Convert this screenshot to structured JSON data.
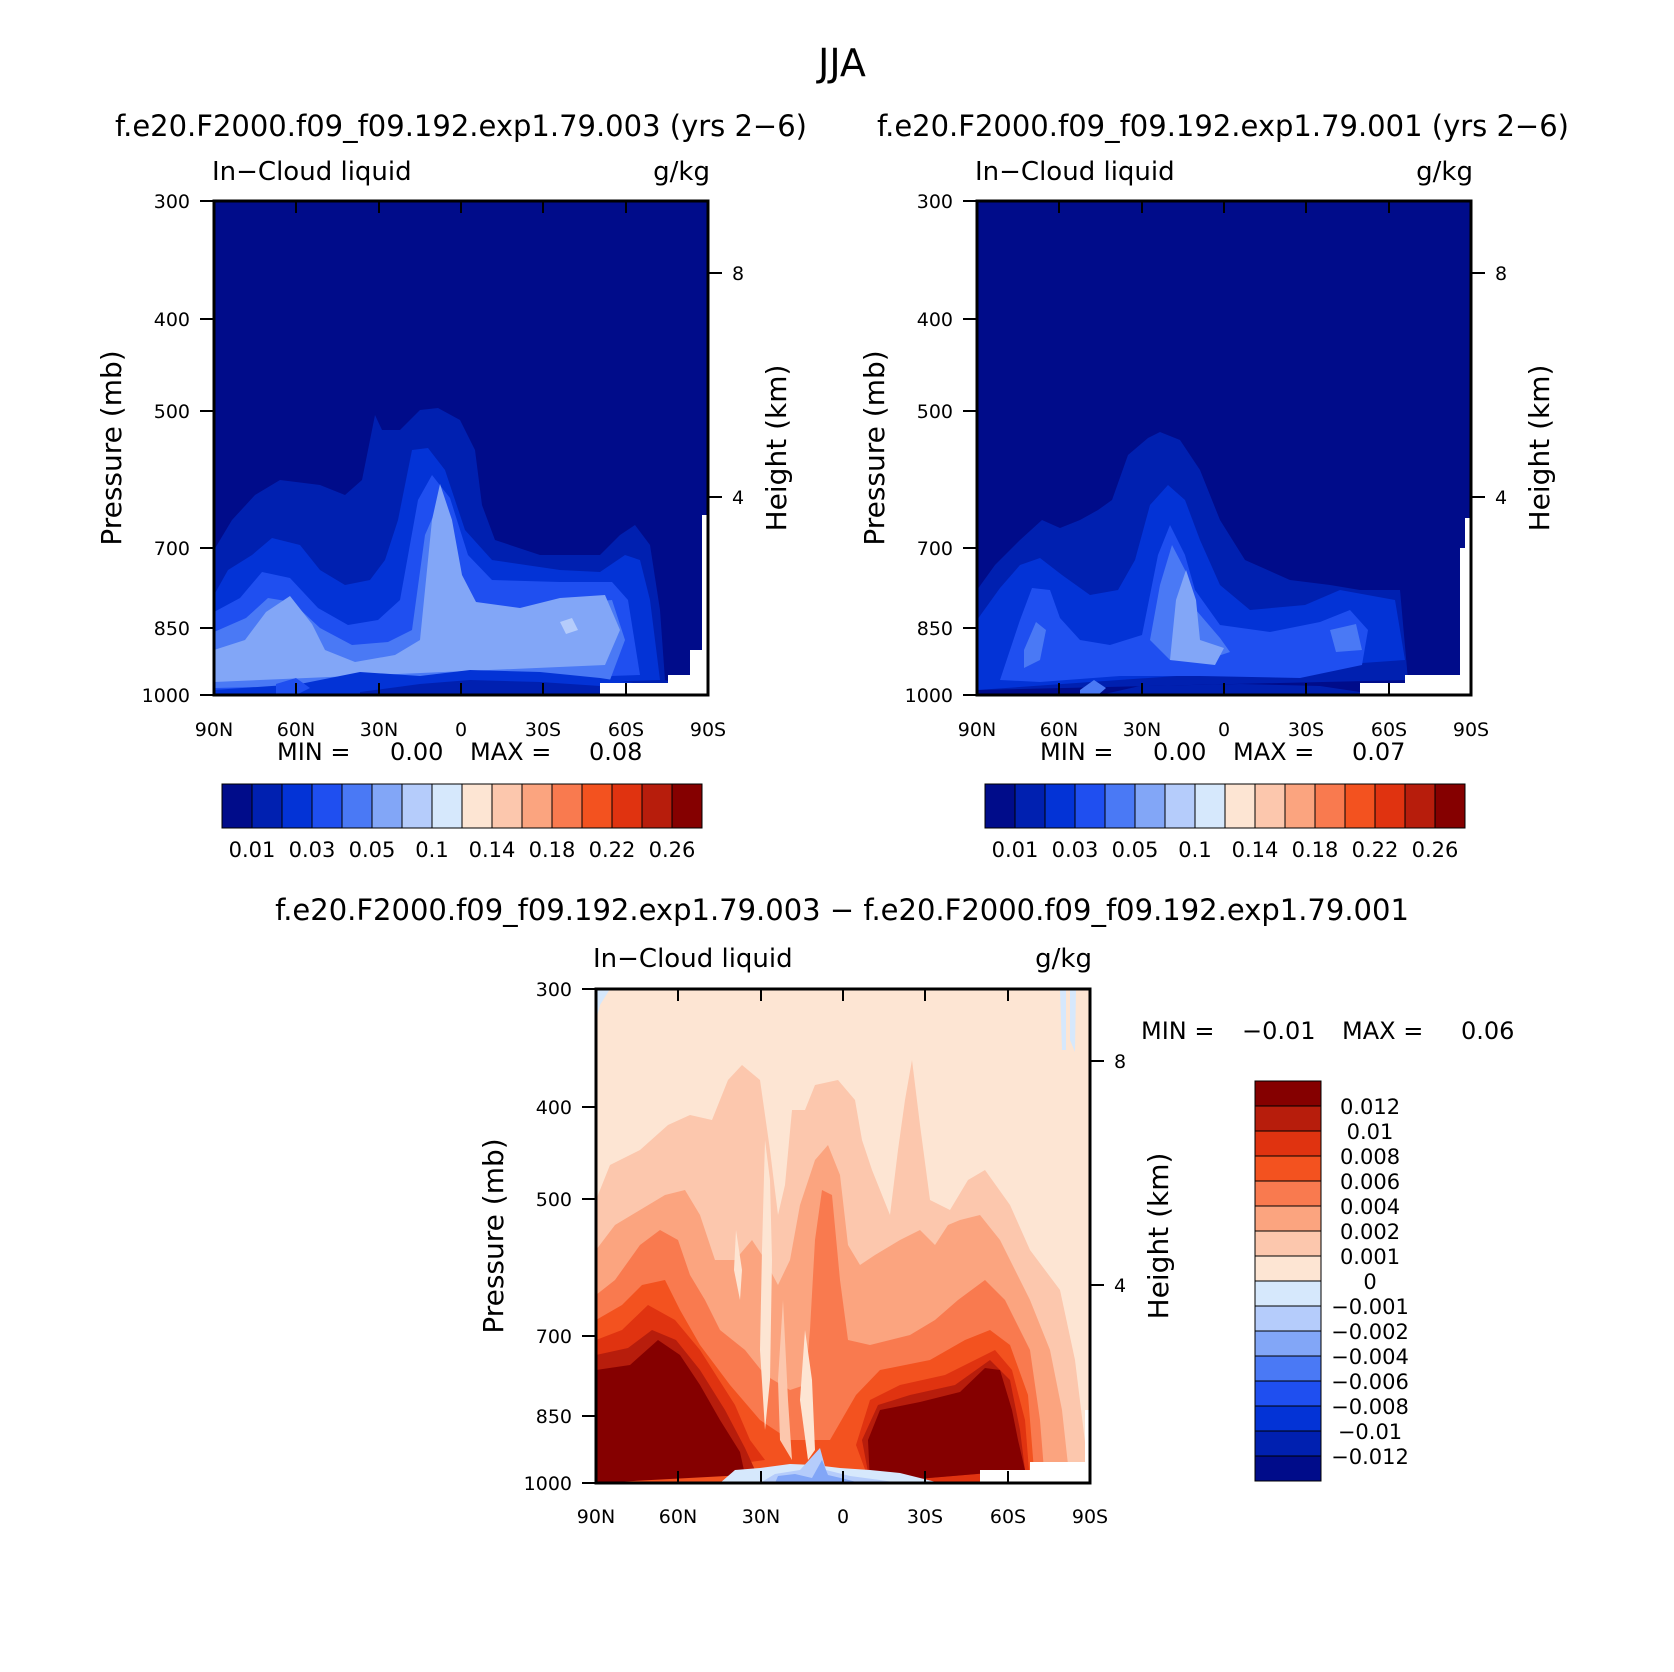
{
  "figure": {
    "title": "JJA"
  },
  "chart_data": [
    {
      "type": "heatmap",
      "id": "panel1",
      "title": "f.e20.F2000.f09_f09.192.exp1.79.003 (yrs 2−6)",
      "variable_label": "In−Cloud liquid",
      "units": "g/kg",
      "ylabel": "Pressure (mb)",
      "right_label": "Height (km)",
      "x_ticks": [
        "90N",
        "60N",
        "30N",
        "0",
        "30S",
        "60S",
        "90S"
      ],
      "y_ticks": [
        "300",
        "400",
        "500",
        "700",
        "850",
        "1000"
      ],
      "right_ticks": [
        "8",
        "4"
      ],
      "stats": {
        "min_label": "MIN =",
        "min": "0.00",
        "max_label": "MAX =",
        "max": "0.08"
      },
      "colorbar_labels": [
        "0.01",
        "0.03",
        "0.05",
        "0.1",
        "0.14",
        "0.18",
        "0.22",
        "0.26"
      ],
      "contour_levels": [
        "0.01",
        "0.02",
        "0.03",
        "0.04",
        "0.05",
        "0.06",
        "0.1",
        "0.12",
        "0.14",
        "0.16",
        "0.18",
        "0.20",
        "0.22",
        "0.24",
        "0.26"
      ]
    },
    {
      "type": "heatmap",
      "id": "panel2",
      "title": "f.e20.F2000.f09_f09.192.exp1.79.001 (yrs 2−6)",
      "variable_label": "In−Cloud liquid",
      "units": "g/kg",
      "ylabel": "Pressure (mb)",
      "right_label": "Height (km)",
      "x_ticks": [
        "90N",
        "60N",
        "30N",
        "0",
        "30S",
        "60S",
        "90S"
      ],
      "y_ticks": [
        "300",
        "400",
        "500",
        "700",
        "850",
        "1000"
      ],
      "right_ticks": [
        "8",
        "4"
      ],
      "stats": {
        "min_label": "MIN =",
        "min": "0.00",
        "max_label": "MAX =",
        "max": "0.07"
      },
      "colorbar_labels": [
        "0.01",
        "0.03",
        "0.05",
        "0.1",
        "0.14",
        "0.18",
        "0.22",
        "0.26"
      ],
      "contour_levels": [
        "0.01",
        "0.02",
        "0.03",
        "0.04",
        "0.05",
        "0.06",
        "0.1",
        "0.12",
        "0.14",
        "0.16",
        "0.18",
        "0.20",
        "0.22",
        "0.24",
        "0.26"
      ]
    },
    {
      "type": "heatmap",
      "id": "panel3",
      "title": "f.e20.F2000.f09_f09.192.exp1.79.003 − f.e20.F2000.f09_f09.192.exp1.79.001",
      "variable_label": "In−Cloud liquid",
      "units": "g/kg",
      "ylabel": "Pressure (mb)",
      "right_label": "Height (km)",
      "x_ticks": [
        "90N",
        "60N",
        "30N",
        "0",
        "30S",
        "60S",
        "90S"
      ],
      "y_ticks": [
        "300",
        "400",
        "500",
        "700",
        "850",
        "1000"
      ],
      "right_ticks": [
        "8",
        "4"
      ],
      "stats": {
        "min_label": "MIN =",
        "min": "−0.01",
        "max_label": "MAX =",
        "max": "0.06"
      },
      "colorbar_labels": [
        "0.012",
        "0.01",
        "0.008",
        "0.006",
        "0.004",
        "0.002",
        "0.001",
        "0",
        "−0.001",
        "−0.002",
        "−0.004",
        "−0.006",
        "−0.008",
        "−0.01",
        "−0.012"
      ]
    }
  ],
  "palettes": {
    "cloud": [
      "#000c8a",
      "#0020b0",
      "#0333d6",
      "#1f4ff0",
      "#4a79f5",
      "#82a6f7",
      "#b5ccfb",
      "#d6e8fc",
      "#fde5d3",
      "#fcc7ad",
      "#fba47f",
      "#f97a4f",
      "#f3521f",
      "#e03310",
      "#b71d0c",
      "#850000"
    ],
    "diff": [
      "#850000",
      "#b71d0c",
      "#e03310",
      "#f3521f",
      "#f97a4f",
      "#fba47f",
      "#fcc7ad",
      "#fde5d3",
      "#d6e8fc",
      "#b5ccfb",
      "#82a6f7",
      "#4a79f5",
      "#1f4ff0",
      "#0333d6",
      "#0020b0",
      "#000c8a"
    ]
  }
}
